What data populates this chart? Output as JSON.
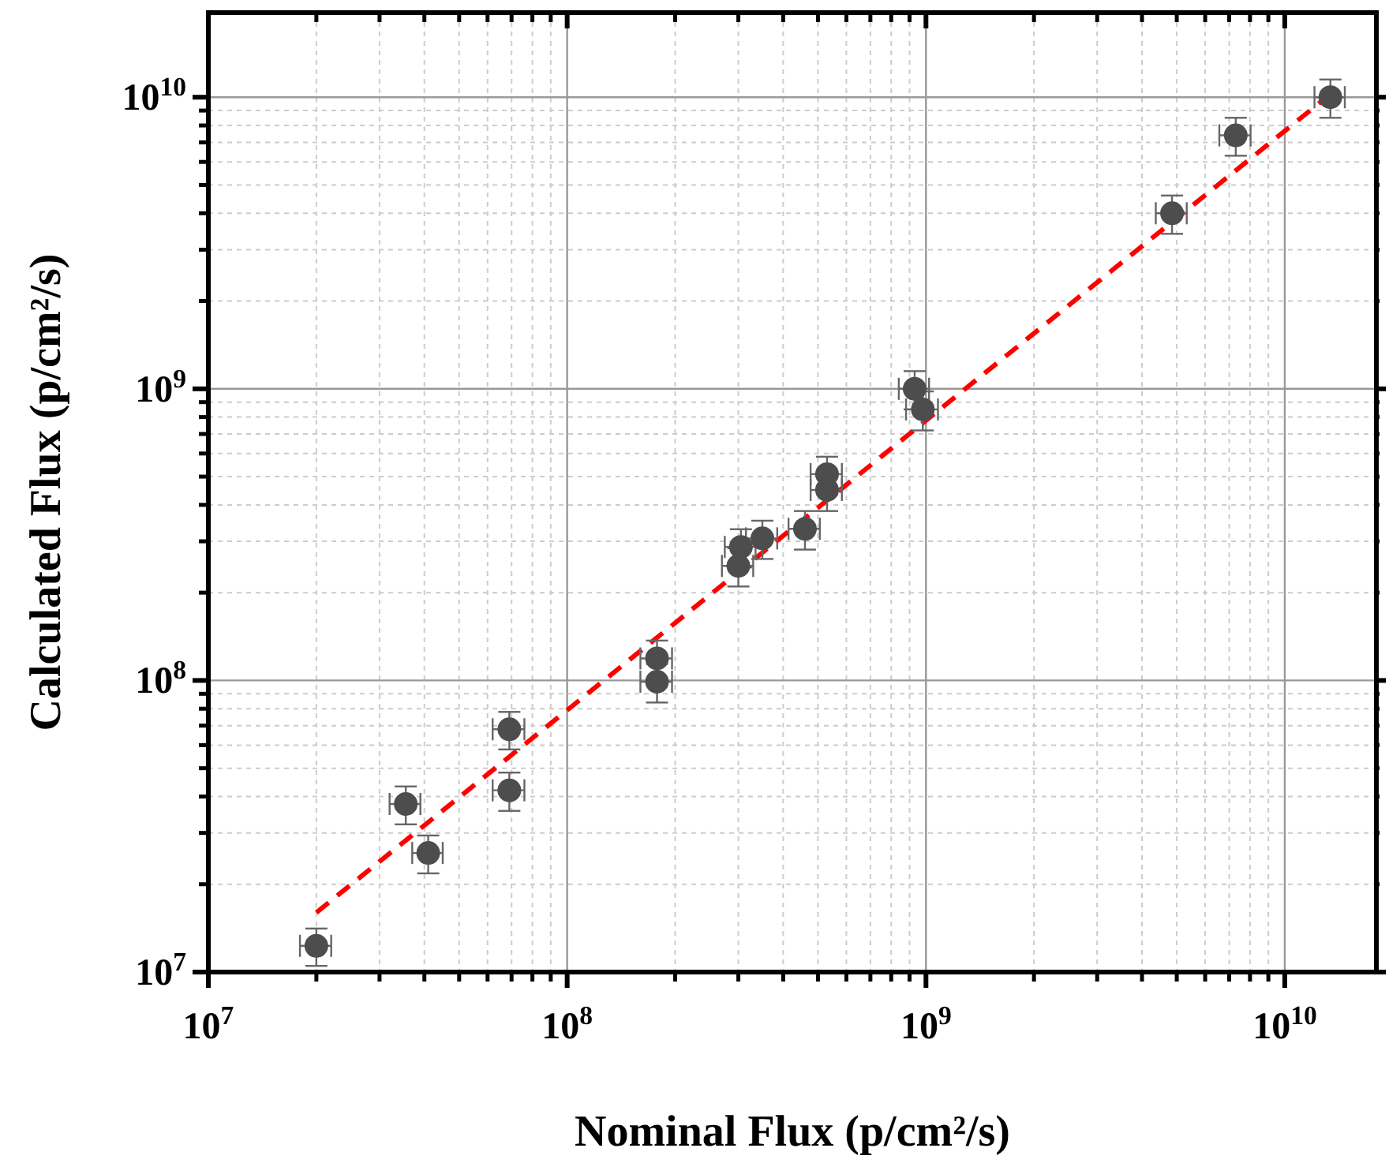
{
  "chart_data": {
    "type": "scatter",
    "xlabel": "Nominal Flux (p/cm²/s)",
    "ylabel": "Calculated Flux (p/cm²/s)",
    "log": "xy",
    "grid": true,
    "marker": "circle",
    "xlim": [
      10000000.0,
      18000000000.0
    ],
    "ylim": [
      10000000.0,
      19500000000.0
    ],
    "xticks": [
      {
        "value": 10000000.0,
        "label": "10$^{7}$"
      },
      {
        "value": 20000000.0,
        "label": null
      },
      {
        "value": 30000000.0,
        "label": null
      },
      {
        "value": 40000000.0,
        "label": null
      },
      {
        "value": 50000000.0,
        "label": null
      },
      {
        "value": 60000000.0,
        "label": null
      },
      {
        "value": 70000000.0,
        "label": null
      },
      {
        "value": 80000000.0,
        "label": null
      },
      {
        "value": 90000000.0,
        "label": null
      },
      {
        "value": 100000000.0,
        "label": "10$^{8}$"
      },
      {
        "value": 200000000.0,
        "label": null
      },
      {
        "value": 300000000.0,
        "label": null
      },
      {
        "value": 400000000.0,
        "label": null
      },
      {
        "value": 500000000.0,
        "label": null
      },
      {
        "value": 600000000.0,
        "label": null
      },
      {
        "value": 700000000.0,
        "label": null
      },
      {
        "value": 800000000.0,
        "label": null
      },
      {
        "value": 900000000.0,
        "label": null
      },
      {
        "value": 1000000000.0,
        "label": "10$^{9}$"
      },
      {
        "value": 2000000000.0,
        "label": null
      },
      {
        "value": 3000000000.0,
        "label": null
      },
      {
        "value": 4000000000.0,
        "label": null
      },
      {
        "value": 5000000000.0,
        "label": null
      },
      {
        "value": 6000000000.0,
        "label": null
      },
      {
        "value": 7000000000.0,
        "label": null
      },
      {
        "value": 8000000000.0,
        "label": null
      },
      {
        "value": 9000000000.0,
        "label": null
      },
      {
        "value": 10000000000.0,
        "label": "10$^{10}$"
      }
    ],
    "yticks": [
      {
        "value": 10000000.0,
        "label": "10$^{7}$"
      },
      {
        "value": 20000000.0,
        "label": null
      },
      {
        "value": 30000000.0,
        "label": null
      },
      {
        "value": 40000000.0,
        "label": null
      },
      {
        "value": 50000000.0,
        "label": null
      },
      {
        "value": 60000000.0,
        "label": null
      },
      {
        "value": 70000000.0,
        "label": null
      },
      {
        "value": 80000000.0,
        "label": null
      },
      {
        "value": 90000000.0,
        "label": null
      },
      {
        "value": 100000000.0,
        "label": "10$^{8}$"
      },
      {
        "value": 200000000.0,
        "label": null
      },
      {
        "value": 300000000.0,
        "label": null
      },
      {
        "value": 400000000.0,
        "label": null
      },
      {
        "value": 500000000.0,
        "label": null
      },
      {
        "value": 600000000.0,
        "label": null
      },
      {
        "value": 700000000.0,
        "label": null
      },
      {
        "value": 800000000.0,
        "label": null
      },
      {
        "value": 900000000.0,
        "label": null
      },
      {
        "value": 1000000000.0,
        "label": "10$^{9}$"
      },
      {
        "value": 2000000000.0,
        "label": null
      },
      {
        "value": 3000000000.0,
        "label": null
      },
      {
        "value": 4000000000.0,
        "label": null
      },
      {
        "value": 5000000000.0,
        "label": null
      },
      {
        "value": 6000000000.0,
        "label": null
      },
      {
        "value": 7000000000.0,
        "label": null
      },
      {
        "value": 8000000000.0,
        "label": null
      },
      {
        "value": 9000000000.0,
        "label": null
      },
      {
        "value": 10000000000.0,
        "label": "10$^{10}$"
      }
    ],
    "series": [
      {
        "type": "line",
        "color": "#ff0000",
        "line_style": "dashed",
        "marker": "none",
        "x": [
          20000000.0,
          14000000000.0
        ],
        "values": [
          16000000.0,
          10700000000.0
        ]
      },
      {
        "color": "#4d4d4d",
        "x": [
          20000000.0,
          35500000.0,
          41000000.0,
          69000000.0,
          69000000.0,
          178000000.0,
          178000000.0,
          305000000.0,
          300000000.0,
          350000000.0,
          460000000.0,
          530000000.0,
          530000000.0,
          930000000.0,
          980000000.0,
          4850000000.0,
          7300000000.0,
          13400000000.0
        ],
        "values": [
          12300000.0,
          37700000.0,
          25600000.0,
          68000000.0,
          42000000.0,
          119000000.0,
          99000000.0,
          287000000.0,
          247000000.0,
          307000000.0,
          331000000.0,
          510000000.0,
          450000000.0,
          1000000000.0,
          850000000.0,
          4000000000.0,
          7400000000.0,
          10000000000.0
        ],
        "errors": [
          1800000.0,
          5600000.0,
          3800000.0,
          10000000.0,
          6300000.0,
          18000000.0,
          15000000.0,
          43000000.0,
          37000000.0,
          46000000.0,
          50000000.0,
          75000000.0,
          69000000.0,
          150000000.0,
          130000000.0,
          600000000.0,
          1100000000.0,
          1500000000.0
        ],
        "xerrors": [
          2000000.0,
          3500000.0,
          4000000.0,
          7000000.0,
          7000000.0,
          18000000.0,
          18000000.0,
          30000000.0,
          30000000.0,
          35000000.0,
          46000000.0,
          53000000.0,
          53000000.0,
          90000000.0,
          100000000.0,
          480000000.0,
          730000000.0,
          1300000000.0
        ]
      }
    ]
  }
}
